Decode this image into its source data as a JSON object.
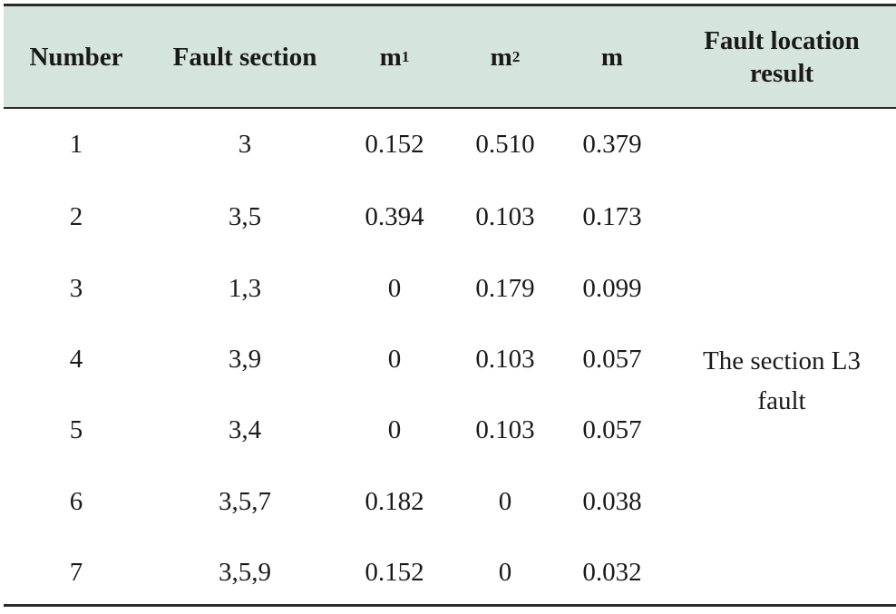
{
  "header": {
    "number": "Number",
    "fault_section": "Fault section",
    "m1_base": "m",
    "m1_sub": "1",
    "m2_base": "m",
    "m2_sub": "2",
    "m": "m",
    "result": "Fault location result"
  },
  "rows": [
    {
      "number": "1",
      "section": "3",
      "m1": "0.152",
      "m2": "0.510",
      "m": "0.379"
    },
    {
      "number": "2",
      "section": "3,5",
      "m1": "0.394",
      "m2": "0.103",
      "m": "0.173"
    },
    {
      "number": "3",
      "section": "1,3",
      "m1": "0",
      "m2": "0.179",
      "m": "0.099"
    },
    {
      "number": "4",
      "section": "3,9",
      "m1": "0",
      "m2": "0.103",
      "m": "0.057"
    },
    {
      "number": "5",
      "section": "3,4",
      "m1": "0",
      "m2": "0.103",
      "m": "0.057"
    },
    {
      "number": "6",
      "section": "3,5,7",
      "m1": "0.182",
      "m2": "0",
      "m": "0.038"
    },
    {
      "number": "7",
      "section": "3,5,9",
      "m1": "0.152",
      "m2": "0",
      "m": "0.032"
    }
  ],
  "result": {
    "line1": "The section L3",
    "line2": "fault"
  },
  "colors": {
    "header_bg": "#d5e4dc",
    "rule": "#2b2b2b",
    "text": "#1a1a1a"
  }
}
